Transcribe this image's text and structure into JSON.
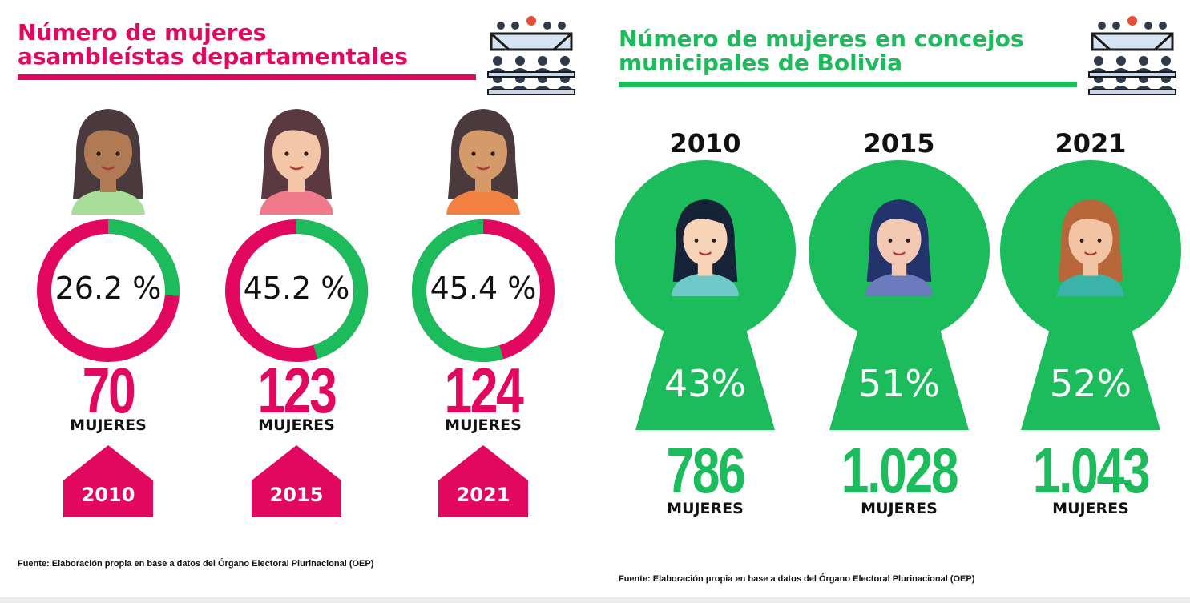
{
  "left": {
    "title_line1": "Número de mujeres",
    "title_line2": "asambleístas departamentales",
    "colors": {
      "accent": "#e2085f",
      "other": "#1cbc5d"
    },
    "word": "MUJERES",
    "source": "Fuente: Elaboración propia en base a datos del Órgano Electoral Plurinacional (OEP)"
  },
  "right": {
    "title_line1": "Número de mujeres en concejos",
    "title_line2": "municipales de Bolivia",
    "colors": {
      "accent": "#1cbc5d"
    },
    "word": "MUJERES",
    "source": "Fuente: Elaboración propia en base a datos del Órgano Electoral Plurinacional (OEP)"
  },
  "chart_data": [
    {
      "type": "pie",
      "title": "Número de mujeres asambleístas departamentales",
      "categories": [
        "2010",
        "2015",
        "2021"
      ],
      "percent_labels": [
        "26.2 %",
        "45.2 %",
        "45.4 %"
      ],
      "percent_values": [
        26.2,
        45.2,
        45.4
      ],
      "count_labels": [
        "70",
        "123",
        "124"
      ],
      "count_values": [
        70,
        123,
        124
      ],
      "unit": "MUJERES"
    },
    {
      "type": "bar",
      "title": "Número de mujeres en concejos municipales de Bolivia",
      "categories": [
        "2010",
        "2015",
        "2021"
      ],
      "percent_labels": [
        "43%",
        "51%",
        "52%"
      ],
      "percent_values": [
        43,
        51,
        52
      ],
      "count_labels": [
        "786",
        "1.028",
        "1.043"
      ],
      "count_values": [
        786,
        1028,
        1043
      ],
      "unit": "MUJERES"
    }
  ]
}
